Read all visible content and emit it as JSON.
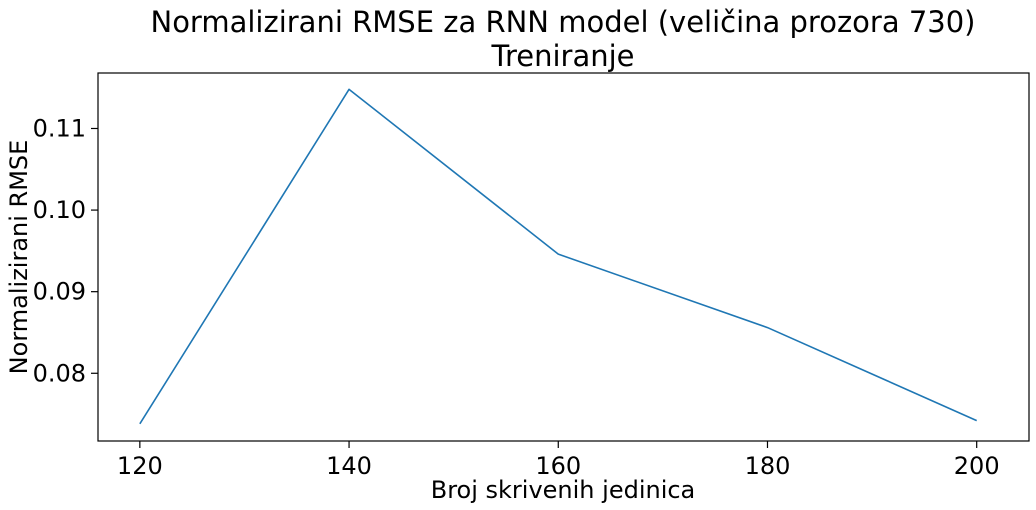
{
  "chart_data": {
    "type": "line",
    "title": "Normalizirani RMSE za RNN model (veličina prozora 730)",
    "subtitle": "Treniranje",
    "xlabel": "Broj skrivenih jedinica",
    "ylabel": "Normalizirani RMSE",
    "x": [
      120,
      140,
      160,
      180,
      200
    ],
    "series": [
      {
        "values": [
          0.0738,
          0.1148,
          0.0946,
          0.0856,
          0.0742
        ],
        "color": "#1f77b4"
      }
    ],
    "x_ticks": [
      "120",
      "140",
      "160",
      "180",
      "200"
    ],
    "y_ticks": [
      "0.08",
      "0.09",
      "0.10",
      "0.11"
    ],
    "xlim": [
      116,
      205
    ],
    "ylim": [
      0.0717,
      0.1168
    ],
    "grid": false,
    "legend": "none"
  }
}
